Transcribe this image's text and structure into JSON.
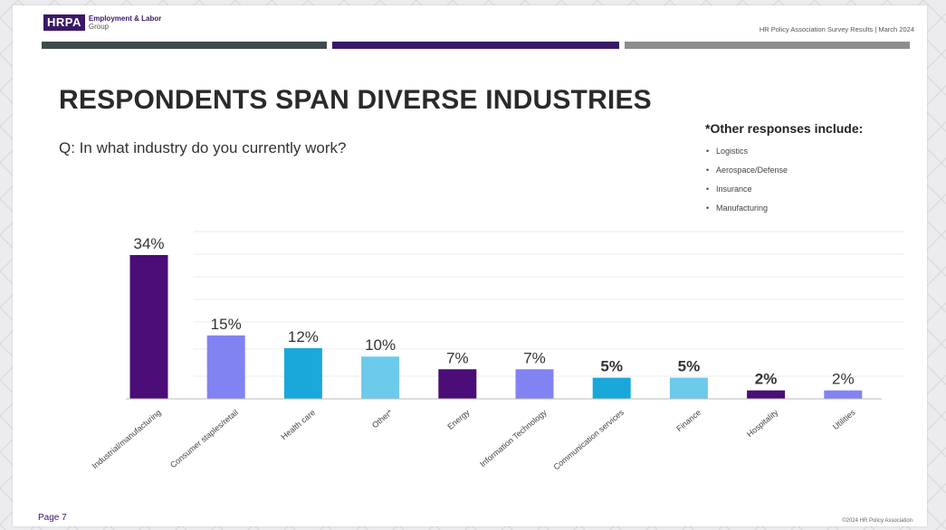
{
  "header": {
    "logo_mark": "HRPA",
    "logo_line1": "Employment & Labor",
    "logo_line2": "Group",
    "meta": "HR Policy Association Survey Results | March 2024"
  },
  "slide": {
    "title": "RESPONDENTS SPAN DIVERSE INDUSTRIES",
    "question": "Q: In what industry do you currently work?",
    "other_title": "*Other responses include:",
    "other_items": [
      "Logistics",
      "Aerospace/Defense",
      "Insurance",
      "Manufacturing"
    ],
    "page": "Page 7",
    "copyright": "©2024 HR Policy Association"
  },
  "colors": {
    "dark_purple": "#4b0d77",
    "periwinkle": "#8283f3",
    "teal": "#1aa8db",
    "light_blue": "#6ccaea",
    "title_text": "#2a2a2a",
    "brand": "#3a1869"
  },
  "chart_data": {
    "type": "bar",
    "categories": [
      "Industrial/manufacturing",
      "Consumer staples/retail",
      "Health care",
      "Other*",
      "Energy",
      "Information Technology",
      "Communication services",
      "Finance",
      "Hospitality",
      "Utilities"
    ],
    "values": [
      34,
      15,
      12,
      10,
      7,
      7,
      5,
      5,
      2,
      2
    ],
    "labels": [
      "34%",
      "15%",
      "12%",
      "10%",
      "7%",
      "7%",
      "5%",
      "5%",
      "2%",
      "2%"
    ],
    "bold_labels": [
      false,
      false,
      false,
      false,
      false,
      false,
      true,
      true,
      true,
      false
    ],
    "bar_colors": [
      "#4b0d77",
      "#8283f3",
      "#1aa8db",
      "#6ccaea",
      "#4b0d77",
      "#8283f3",
      "#1aa8db",
      "#6ccaea",
      "#4b0d77",
      "#8283f3"
    ],
    "ylim": [
      0,
      34
    ],
    "grid": true,
    "title": "",
    "xlabel": "",
    "ylabel": ""
  }
}
